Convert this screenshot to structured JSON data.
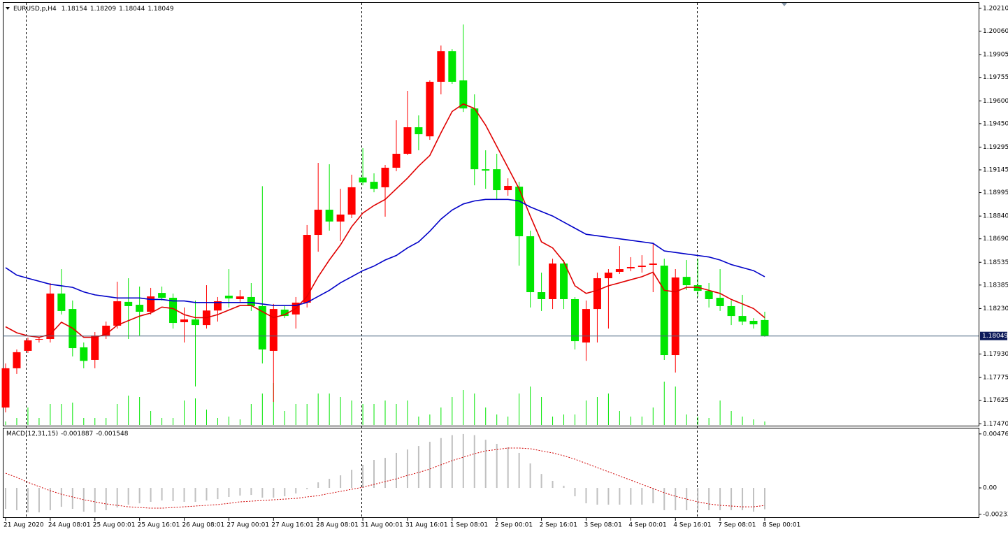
{
  "chart_data": [
    {
      "type": "candlestick",
      "title": "EURUSD,p,H4",
      "categories": [
        "21 Aug 2020",
        null,
        null,
        null,
        "24 Aug 08:01",
        null,
        null,
        null,
        "25 Aug 00:01",
        null,
        null,
        null,
        "25 Aug 16:01",
        null,
        null,
        null,
        "26 Aug 08:01",
        null,
        null,
        null,
        "27 Aug 00:01",
        null,
        null,
        null,
        "27 Aug 16:01",
        null,
        null,
        null,
        "28 Aug 08:01",
        null,
        null,
        null,
        "31 Aug 00:01",
        null,
        null,
        null,
        "31 Aug 16:01",
        null,
        null,
        null,
        "1 Sep 08:01",
        null,
        null,
        null,
        "2 Sep 00:01",
        null,
        null,
        null,
        "2 Sep 16:01",
        null,
        null,
        null,
        "3 Sep 08:01",
        null,
        null,
        null,
        "4 Sep 00:01",
        null,
        null,
        null,
        "4 Sep 16:01",
        null,
        null,
        null,
        "7 Sep 08:01",
        null,
        null,
        null,
        "8 Sep 00:01"
      ],
      "open": [
        1.17577,
        1.17836,
        1.17951,
        1.18025,
        1.18029,
        1.18329,
        1.18227,
        1.17974,
        1.17891,
        1.18052,
        1.18117,
        1.18274,
        1.18255,
        1.18209,
        1.18333,
        1.18301,
        1.1814,
        1.18158,
        1.18121,
        1.18217,
        1.18315,
        1.18292,
        1.18306,
        1.18246,
        1.17951,
        1.18223,
        1.18191,
        1.18269,
        1.18716,
        1.18882,
        1.18804,
        1.1885,
        1.19094,
        1.19066,
        1.1903,
        1.19159,
        1.19251,
        1.19426,
        1.19366,
        1.19726,
        1.19928,
        1.19735,
        1.1955,
        1.19149,
        1.19149,
        1.19011,
        1.19034,
        1.18707,
        1.18338,
        1.18292,
        1.18527,
        1.18292,
        1.18006,
        1.18227,
        1.1843,
        1.18472,
        1.18495,
        1.18504,
        1.18518,
        1.18513,
        1.17923,
        1.18439,
        1.18384,
        1.18347,
        1.18301,
        1.18246,
        1.18181,
        1.18149,
        1.18154
      ],
      "high": [
        1.17868,
        1.1796,
        1.18038,
        1.18043,
        1.18398,
        1.1849,
        1.18283,
        1.18006,
        1.18075,
        1.18144,
        1.18407,
        1.1843,
        1.18375,
        1.18366,
        1.18375,
        1.18329,
        1.18237,
        1.18283,
        1.18384,
        1.18306,
        1.1849,
        1.18352,
        1.18398,
        1.19037,
        1.1826,
        1.18246,
        1.18306,
        1.18781,
        1.19191,
        1.19182,
        1.1902,
        1.19113,
        1.19288,
        1.19122,
        1.19177,
        1.19472,
        1.19666,
        1.19504,
        1.19735,
        1.19965,
        1.19942,
        1.20104,
        1.19643,
        1.19274,
        1.19251,
        1.19089,
        1.19066,
        1.18744,
        1.18467,
        1.18559,
        1.1855,
        1.18306,
        1.18283,
        1.18467,
        1.1849,
        1.18642,
        1.18569,
        1.18582,
        1.18661,
        1.18559,
        1.1849,
        1.1855,
        1.18559,
        1.18398,
        1.1849,
        1.18283,
        1.1832,
        1.18167,
        1.18209
      ],
      "low": [
        1.17545,
        1.17799,
        1.17937,
        1.18006,
        1.18006,
        1.18191,
        1.17914,
        1.17836,
        1.17836,
        1.18029,
        1.18098,
        1.18029,
        1.18052,
        1.18191,
        1.18283,
        1.18098,
        1.18006,
        1.17716,
        1.18098,
        1.18144,
        1.18237,
        1.18274,
        1.18214,
        1.17868,
        1.17614,
        1.18167,
        1.18098,
        1.18237,
        1.18605,
        1.18744,
        1.18675,
        1.18827,
        1.19043,
        1.18997,
        1.18836,
        1.19136,
        1.19242,
        1.19274,
        1.19343,
        1.19643,
        1.19712,
        1.19527,
        1.19043,
        1.1902,
        1.18951,
        1.18974,
        1.18513,
        1.18237,
        1.18214,
        1.18227,
        1.18227,
        1.1796,
        1.17885,
        1.18006,
        1.18098,
        1.18458,
        1.18476,
        1.18467,
        1.18338,
        1.17891,
        1.17808,
        1.18352,
        1.18306,
        1.18237,
        1.18214,
        1.18121,
        1.18121,
        1.18098,
        1.18044
      ],
      "close": [
        1.17836,
        1.17942,
        1.1802,
        1.18029,
        1.18329,
        1.18214,
        1.17969,
        1.17885,
        1.18052,
        1.18117,
        1.18278,
        1.18246,
        1.18209,
        1.1831,
        1.18301,
        1.18135,
        1.18158,
        1.18121,
        1.18217,
        1.18278,
        1.18297,
        1.1831,
        1.18246,
        1.1796,
        1.18227,
        1.18181,
        1.18269,
        1.18716,
        1.18882,
        1.18804,
        1.1885,
        1.1903,
        1.19062,
        1.1902,
        1.19159,
        1.19251,
        1.19426,
        1.1938,
        1.19726,
        1.19928,
        1.19726,
        1.1955,
        1.19149,
        1.1914,
        1.19011,
        1.19039,
        1.18707,
        1.18338,
        1.18292,
        1.18527,
        1.18292,
        1.18015,
        1.18227,
        1.1843,
        1.18467,
        1.1849,
        1.18504,
        1.18513,
        1.18527,
        1.17923,
        1.18435,
        1.18384,
        1.18347,
        1.18292,
        1.18246,
        1.18181,
        1.18144,
        1.18126,
        1.18049
      ],
      "up_color": "#ff0000",
      "down_color": "#00e600",
      "lines": [
        {
          "color": "#e00000",
          "values": [
            1.1811,
            1.1807,
            1.1805,
            1.1804,
            1.1806,
            1.1814,
            1.181,
            1.1804,
            1.1804,
            1.1806,
            1.1812,
            1.1815,
            1.1818,
            1.182,
            1.1824,
            1.1823,
            1.1819,
            1.1817,
            1.1817,
            1.1819,
            1.1822,
            1.1825,
            1.1825,
            1.1821,
            1.1817,
            1.1819,
            1.1823,
            1.1831,
            1.1844,
            1.1855,
            1.1865,
            1.1877,
            1.1886,
            1.1891,
            1.1895,
            1.1902,
            1.1909,
            1.1917,
            1.1924,
            1.1939,
            1.1953,
            1.1958,
            1.1955,
            1.1944,
            1.193,
            1.1916,
            1.1902,
            1.1884,
            1.1867,
            1.1863,
            1.1854,
            1.1838,
            1.1833,
            1.1835,
            1.1838,
            1.184,
            1.1842,
            1.1844,
            1.1847,
            1.1835,
            1.1834,
            1.1837,
            1.1837,
            1.1835,
            1.1833,
            1.1829,
            1.1826,
            1.1823,
            1.1817
          ]
        },
        {
          "color": "#0000c8",
          "values": [
            1.185,
            1.1845,
            1.1843,
            1.1841,
            1.1839,
            1.1838,
            1.1837,
            1.1834,
            1.1832,
            1.1831,
            1.183,
            1.183,
            1.183,
            1.1829,
            1.1829,
            1.1828,
            1.1828,
            1.1827,
            1.1827,
            1.1827,
            1.1827,
            1.1827,
            1.1827,
            1.1826,
            1.1825,
            1.1825,
            1.1825,
            1.1827,
            1.1831,
            1.1835,
            1.184,
            1.1844,
            1.1848,
            1.1851,
            1.1855,
            1.1858,
            1.1863,
            1.1867,
            1.1874,
            1.1882,
            1.1888,
            1.1892,
            1.1894,
            1.1895,
            1.1895,
            1.1895,
            1.1894,
            1.189,
            1.1887,
            1.1884,
            1.188,
            1.1876,
            1.1872,
            1.1871,
            1.187,
            1.1869,
            1.1868,
            1.1867,
            1.1866,
            1.1861,
            1.186,
            1.1859,
            1.1858,
            1.1857,
            1.1855,
            1.1852,
            1.185,
            1.1848,
            1.1844
          ]
        }
      ],
      "volume": {
        "color": "#00e600",
        "values": [
          5,
          10,
          25,
          10,
          30,
          30,
          32,
          10,
          10,
          10,
          30,
          42,
          40,
          20,
          10,
          10,
          35,
          38,
          22,
          10,
          12,
          8,
          30,
          45,
          60,
          20,
          30,
          30,
          45,
          45,
          40,
          35,
          30,
          30,
          35,
          30,
          35,
          12,
          15,
          25,
          40,
          50,
          45,
          25,
          15,
          12,
          45,
          55,
          40,
          12,
          15,
          15,
          35,
          40,
          45,
          20,
          12,
          12,
          25,
          62,
          55,
          15,
          12,
          10,
          35,
          20,
          12,
          8,
          5
        ]
      },
      "ylim": [
        1.17462,
        1.20247
      ],
      "yticks": [
        {
          "value": 1.2021,
          "label": "1.20210"
        },
        {
          "value": 1.2006,
          "label": "1.20060"
        },
        1.19905,
        1.19755,
        {
          "value": 1.196,
          "label": "1.19600"
        },
        {
          "value": 1.1945,
          "label": "1.19450"
        },
        1.19295,
        1.19145,
        1.18995,
        {
          "value": 1.1884,
          "label": "1.18840"
        },
        {
          "value": 1.1869,
          "label": "1.18690"
        },
        1.18535,
        1.18385,
        {
          "value": 1.1823,
          "label": "1.18230"
        },
        {
          "value": 1.1793,
          "label": "1.17930"
        },
        1.17775,
        1.17625,
        {
          "value": 1.1747,
          "label": "1.17470"
        }
      ]
    },
    {
      "type": "macd",
      "title": "MACD(12,31,15)",
      "histogram": {
        "color": "#c0c0c0",
        "values": [
          -0.00185,
          -0.00197,
          -0.00216,
          -0.00216,
          -0.00197,
          -0.00167,
          -0.00185,
          -0.0021,
          -0.00216,
          -0.00197,
          -0.00173,
          -0.00148,
          -0.00136,
          -0.00123,
          -0.00111,
          -0.00117,
          -0.00123,
          -0.00123,
          -0.00111,
          -0.00099,
          -0.0008,
          -0.00068,
          -0.00062,
          -0.00086,
          -0.00086,
          -0.00074,
          -0.00049,
          -0.00012,
          0.00049,
          0.0008,
          0.00111,
          0.0016,
          0.00204,
          0.00247,
          0.00265,
          0.00309,
          0.00339,
          0.0037,
          0.00407,
          0.0044,
          0.00466,
          0.00476,
          0.00466,
          0.00425,
          0.00389,
          0.00358,
          0.00309,
          0.00216,
          0.00123,
          0.00062,
          0.00019,
          -0.00074,
          -0.00136,
          -0.00148,
          -0.00148,
          -0.00148,
          -0.00148,
          -0.00148,
          -0.00136,
          -0.00197,
          -0.00197,
          -0.00197,
          -0.00197,
          -0.00197,
          -0.00197,
          -0.00197,
          -0.00197,
          -0.0021,
          -0.001887
        ]
      },
      "signal": {
        "color": "#d00000",
        "values": [
          0.0013,
          0.00093,
          0.00049,
          0.00012,
          -0.00025,
          -0.00056,
          -0.0008,
          -0.00105,
          -0.00123,
          -0.00142,
          -0.00154,
          -0.00167,
          -0.00173,
          -0.00179,
          -0.00179,
          -0.00173,
          -0.00167,
          -0.0016,
          -0.00154,
          -0.00148,
          -0.00136,
          -0.00123,
          -0.00117,
          -0.00111,
          -0.00105,
          -0.00099,
          -0.00093,
          -0.0008,
          -0.00068,
          -0.00049,
          -0.00031,
          -0.00012,
          6e-05,
          0.00031,
          0.00056,
          0.0008,
          0.00111,
          0.00136,
          0.00167,
          0.00204,
          0.00241,
          0.00271,
          0.00302,
          0.00327,
          0.00339,
          0.00352,
          0.00352,
          0.00346,
          0.00327,
          0.00309,
          0.00284,
          0.00253,
          0.00216,
          0.00179,
          0.00142,
          0.00105,
          0.00068,
          0.00031,
          -6e-05,
          -0.00043,
          -0.00074,
          -0.00099,
          -0.00123,
          -0.00142,
          -0.00154,
          -0.0016,
          -0.00167,
          -0.00167,
          -0.001548
        ]
      },
      "ylim": [
        -0.00259,
        0.00531
      ],
      "yticks": [
        0.004766,
        {
          "value": 0,
          "label": "0.00"
        },
        -0.00233
      ]
    }
  ]
}
